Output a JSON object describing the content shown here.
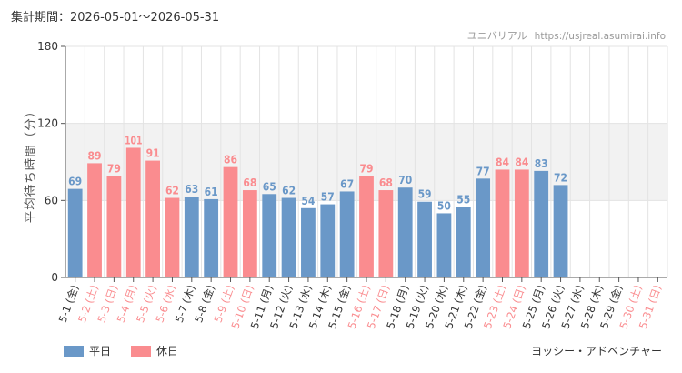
{
  "header": {
    "period": "集計期間：2026-05-01～2026-05-31",
    "brand_name": "ユニバリアル",
    "brand_url": "https://usjreal.asumirai.info"
  },
  "legend": {
    "weekday": "平日",
    "holiday": "休日"
  },
  "footer": {
    "attraction": "ヨッシー・アドベンチャー"
  },
  "colors": {
    "weekday": "#6a98c8",
    "holiday": "#fa8c8f",
    "band": "#f2f2f2",
    "grid": "#e3e3e3",
    "axis": "#555555"
  },
  "chart_data": {
    "type": "bar",
    "ylabel": "平均待ち時間（分）",
    "ylim": [
      0,
      180
    ],
    "yticks": [
      0,
      60,
      120,
      180
    ],
    "highlight_band": [
      60,
      120
    ],
    "grid": true,
    "legend_position": "bottom-left",
    "categories": [
      "5-1 (金)",
      "5-2 (土)",
      "5-3 (日)",
      "5-4 (月)",
      "5-5 (火)",
      "5-6 (水)",
      "5-7 (木)",
      "5-8 (金)",
      "5-9 (土)",
      "5-10 (日)",
      "5-11 (月)",
      "5-12 (火)",
      "5-13 (水)",
      "5-14 (木)",
      "5-15 (金)",
      "5-16 (土)",
      "5-17 (日)",
      "5-18 (月)",
      "5-19 (火)",
      "5-20 (水)",
      "5-21 (木)",
      "5-22 (金)",
      "5-23 (土)",
      "5-24 (日)",
      "5-25 (月)",
      "5-26 (火)",
      "5-27 (水)",
      "5-28 (木)",
      "5-29 (金)",
      "5-30 (土)",
      "5-31 (日)"
    ],
    "day_type": [
      "weekday",
      "holiday",
      "holiday",
      "holiday",
      "holiday",
      "holiday",
      "weekday",
      "weekday",
      "holiday",
      "holiday",
      "weekday",
      "weekday",
      "weekday",
      "weekday",
      "weekday",
      "holiday",
      "holiday",
      "weekday",
      "weekday",
      "weekday",
      "weekday",
      "weekday",
      "holiday",
      "holiday",
      "weekday",
      "weekday",
      "weekday",
      "weekday",
      "weekday",
      "holiday",
      "holiday"
    ],
    "values": [
      69,
      89,
      79,
      101,
      91,
      62,
      63,
      61,
      86,
      68,
      65,
      62,
      54,
      57,
      67,
      79,
      68,
      70,
      59,
      50,
      55,
      77,
      84,
      84,
      83,
      72,
      null,
      null,
      null,
      null,
      null
    ]
  }
}
